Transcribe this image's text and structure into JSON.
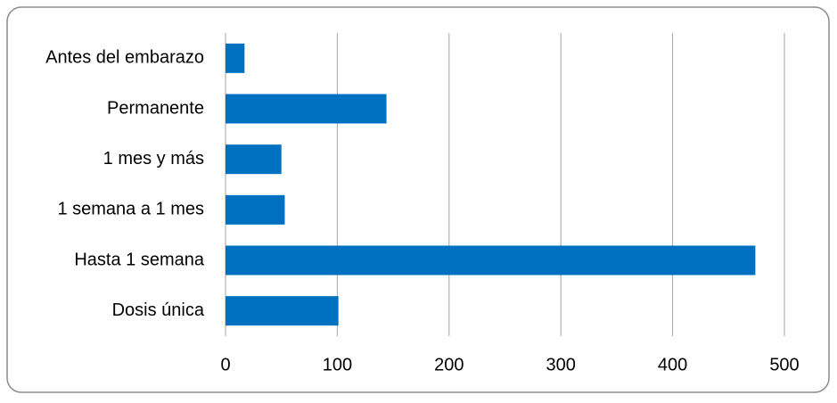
{
  "chart_data": {
    "type": "hbar",
    "categories": [
      "Antes del embarazo",
      "Permanente",
      "1 mes y más",
      "1 semana a 1 mes",
      "Hasta 1 semana",
      "Dosis única"
    ],
    "values": [
      17,
      144,
      50,
      53,
      474,
      101
    ],
    "color": "#0070c0",
    "xlim": [
      0,
      500
    ],
    "xticks": [
      0,
      100,
      200,
      300,
      400,
      500
    ],
    "grid": true
  }
}
